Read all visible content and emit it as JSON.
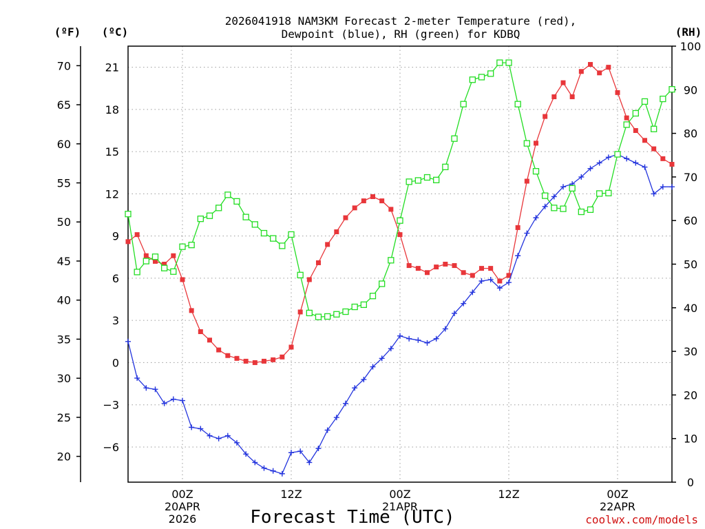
{
  "chart_data": {
    "type": "line",
    "title_line1": "2026041918 NAM3KM Forecast 2-meter Temperature (red),",
    "title_line2": "Dewpoint (blue), RH (green) for KDBQ",
    "xlabel": "Forecast Time (UTC)",
    "credit": "coolwx.com/models",
    "units": {
      "fahrenheit": "(ºF)",
      "celsius": "(ºC)",
      "rh": "(RH)"
    },
    "x_range_hours": [
      0,
      60
    ],
    "celsius_range": [
      -8.5,
      22.5
    ],
    "rh_range": [
      0,
      100
    ],
    "celsius_ticks": [
      -6,
      -3,
      0,
      3,
      6,
      9,
      12,
      15,
      18,
      21
    ],
    "fahrenheit_ticks": [
      20,
      25,
      30,
      35,
      40,
      45,
      50,
      55,
      60,
      65,
      70
    ],
    "rh_ticks": [
      0,
      10,
      20,
      30,
      40,
      50,
      60,
      70,
      80,
      90,
      100
    ],
    "x_ticks": [
      {
        "hour": 6,
        "lines": [
          "00Z",
          "20APR",
          "2026"
        ]
      },
      {
        "hour": 18,
        "lines": [
          "12Z"
        ]
      },
      {
        "hour": 30,
        "lines": [
          "00Z",
          "21APR"
        ]
      },
      {
        "hour": 42,
        "lines": [
          "12Z"
        ]
      },
      {
        "hour": 54,
        "lines": [
          "00Z",
          "22APR"
        ]
      }
    ],
    "series": [
      {
        "name": "Temperature",
        "unit": "C",
        "color": "#e8363a",
        "marker": "filled-square",
        "x": [
          0,
          1,
          2,
          3,
          4,
          5,
          6,
          7,
          8,
          9,
          10,
          11,
          12,
          13,
          14,
          15,
          16,
          17,
          18,
          19,
          20,
          21,
          22,
          23,
          24,
          25,
          26,
          27,
          28,
          29,
          30,
          31,
          32,
          33,
          34,
          35,
          36,
          37,
          38,
          39,
          40,
          41,
          42,
          43,
          44,
          45,
          46,
          47,
          48,
          49,
          50,
          51,
          52,
          53,
          54,
          55,
          56,
          57,
          58,
          59,
          60
        ],
        "values": [
          8.6,
          9.1,
          7.6,
          7.2,
          7.0,
          7.6,
          5.9,
          3.7,
          2.2,
          1.6,
          0.9,
          0.5,
          0.3,
          0.1,
          0.0,
          0.1,
          0.2,
          0.4,
          1.1,
          3.6,
          5.9,
          7.1,
          8.4,
          9.3,
          10.3,
          11.0,
          11.5,
          11.8,
          11.5,
          10.9,
          9.1,
          6.9,
          6.7,
          6.4,
          6.8,
          7.0,
          6.9,
          6.4,
          6.2,
          6.7,
          6.7,
          5.8,
          6.2,
          9.6,
          12.9,
          15.6,
          17.5,
          18.9,
          19.9,
          18.9,
          20.7,
          21.2,
          20.6,
          21.0,
          19.2,
          17.4,
          16.5,
          15.8,
          15.2,
          14.5,
          14.1
        ]
      },
      {
        "name": "Dewpoint",
        "unit": "C",
        "color": "#2233dd",
        "marker": "plus",
        "x": [
          0,
          1,
          2,
          3,
          4,
          5,
          6,
          7,
          8,
          9,
          10,
          11,
          12,
          13,
          14,
          15,
          16,
          17,
          18,
          19,
          20,
          21,
          22,
          23,
          24,
          25,
          26,
          27,
          28,
          29,
          30,
          31,
          32,
          33,
          34,
          35,
          36,
          37,
          38,
          39,
          40,
          41,
          42,
          43,
          44,
          45,
          46,
          47,
          48,
          49,
          50,
          51,
          52,
          53,
          54,
          55,
          56,
          57,
          58,
          59,
          60
        ],
        "values": [
          1.5,
          -1.1,
          -1.8,
          -1.9,
          -2.9,
          -2.6,
          -2.7,
          -4.6,
          -4.7,
          -5.2,
          -5.4,
          -5.2,
          -5.7,
          -6.5,
          -7.1,
          -7.5,
          -7.7,
          -7.9,
          -6.4,
          -6.3,
          -7.1,
          -6.1,
          -4.8,
          -3.9,
          -2.9,
          -1.8,
          -1.2,
          -0.3,
          0.3,
          1.0,
          1.9,
          1.7,
          1.6,
          1.4,
          1.7,
          2.4,
          3.5,
          4.2,
          5.0,
          5.8,
          5.9,
          5.3,
          5.7,
          7.6,
          9.2,
          10.3,
          11.1,
          11.8,
          12.5,
          12.7,
          13.2,
          13.8,
          14.2,
          14.6,
          14.8,
          14.5,
          14.2,
          13.9,
          12.0,
          12.5,
          12.5
        ]
      },
      {
        "name": "RH",
        "unit": "%",
        "color": "#22dd22",
        "marker": "open-square",
        "x": [
          0,
          1,
          2,
          3,
          4,
          5,
          6,
          7,
          8,
          9,
          10,
          11,
          12,
          13,
          14,
          15,
          16,
          17,
          18,
          19,
          20,
          21,
          22,
          23,
          24,
          25,
          26,
          27,
          28,
          29,
          30,
          31,
          32,
          33,
          34,
          35,
          36,
          37,
          38,
          39,
          40,
          41,
          42,
          43,
          44,
          45,
          46,
          47,
          48,
          49,
          50,
          51,
          52,
          53,
          54,
          55,
          56,
          57,
          58,
          59,
          60
        ],
        "values": [
          61.5,
          48.2,
          50.7,
          51.7,
          49.1,
          48.3,
          54.0,
          54.4,
          60.4,
          61.1,
          62.9,
          65.9,
          64.4,
          60.8,
          59.1,
          57.1,
          55.9,
          54.2,
          56.8,
          47.5,
          38.8,
          37.9,
          38.0,
          38.5,
          39.1,
          40.2,
          40.7,
          42.7,
          45.5,
          50.9,
          60.0,
          68.9,
          69.2,
          69.9,
          69.3,
          72.3,
          78.8,
          86.7,
          92.3,
          92.9,
          93.7,
          96.2,
          96.2,
          86.7,
          77.7,
          71.3,
          65.7,
          62.9,
          62.7,
          67.4,
          62.0,
          62.5,
          66.2,
          66.3,
          75.2,
          82.0,
          84.6,
          87.3,
          81.0,
          87.9,
          90.1
        ]
      }
    ]
  }
}
